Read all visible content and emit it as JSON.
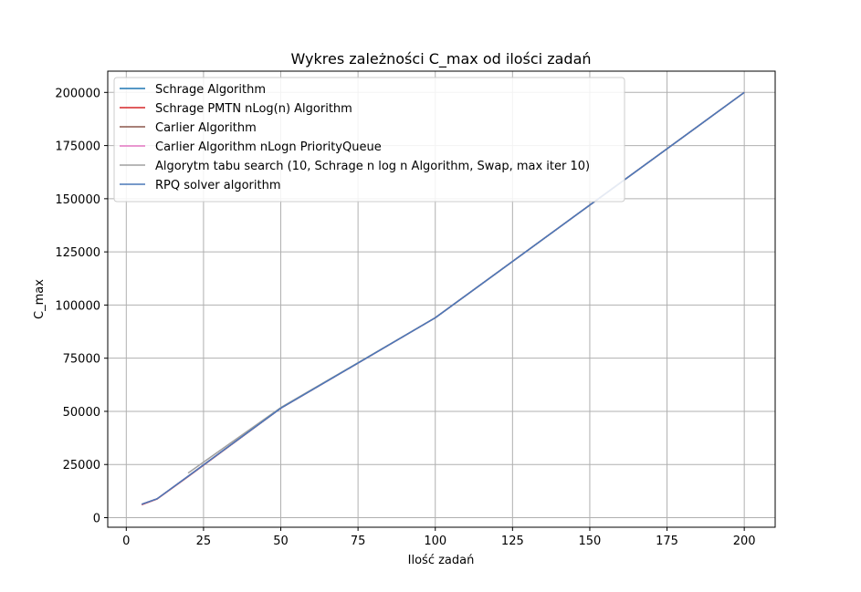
{
  "chart_data": {
    "type": "line",
    "title": "Wykres zależności C_max od ilości zadań",
    "xlabel": "Ilość zadań",
    "ylabel": "C_max",
    "xlim": [
      -6,
      210
    ],
    "ylim": [
      -4500,
      210000
    ],
    "grid": true,
    "legend_position": "top-left",
    "x_ticks": [
      0,
      25,
      50,
      75,
      100,
      125,
      150,
      175,
      200
    ],
    "y_ticks": [
      0,
      25000,
      50000,
      75000,
      100000,
      125000,
      150000,
      175000,
      200000
    ],
    "series": [
      {
        "name": "Schrage Algorithm",
        "color": "#1f77b4",
        "x": [
          5,
          10,
          20,
          50,
          100,
          200
        ],
        "y": [
          6300,
          8900,
          19500,
          51500,
          94000,
          200000
        ]
      },
      {
        "name": "Schrage PMTN nLog(n) Algorithm",
        "color": "#d62728",
        "x": [
          5,
          10,
          20,
          50,
          100,
          200
        ],
        "y": [
          6100,
          8800,
          19300,
          51500,
          94000,
          200000
        ]
      },
      {
        "name": "Carlier Algorithm",
        "color": "#8c564b",
        "x": [
          5,
          10,
          20,
          50,
          100,
          200
        ],
        "y": [
          6300,
          8900,
          19500,
          51500,
          94000,
          200000
        ]
      },
      {
        "name": "Carlier Algorithm nLogn PriorityQueue",
        "color": "#e377c2",
        "x": [
          5,
          10,
          20,
          50,
          100,
          200
        ],
        "y": [
          6300,
          8900,
          19500,
          51500,
          94000,
          200000
        ]
      },
      {
        "name": "Algorytm tabu search (10, Schrage n log n Algorithm, Swap, max iter 10)",
        "color": "#a0a0a0",
        "x": [
          20,
          50,
          100,
          200
        ],
        "y": [
          21000,
          51800,
          94000,
          200000
        ]
      },
      {
        "name": "RPQ solver algorithm",
        "color": "#4a78b8",
        "x": [
          5,
          10,
          20,
          50,
          100,
          200
        ],
        "y": [
          6300,
          8900,
          19500,
          51500,
          94000,
          200000
        ]
      }
    ]
  }
}
